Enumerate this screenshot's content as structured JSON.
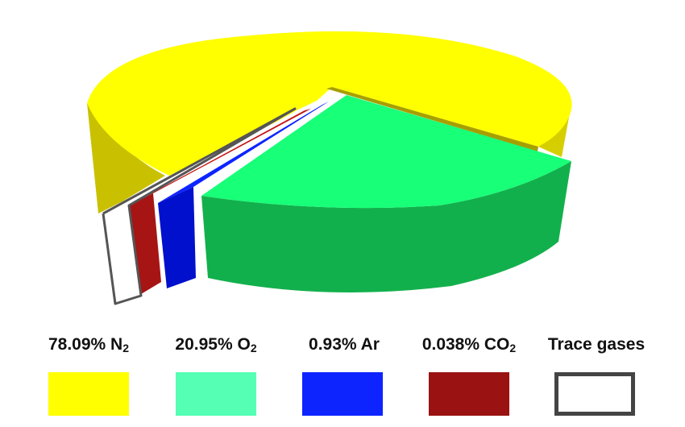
{
  "chart_data": {
    "type": "pie",
    "categories": [
      "N2",
      "O2",
      "Ar",
      "CO2",
      "Trace gases"
    ],
    "values": [
      78.09,
      20.95,
      0.93,
      0.038,
      0.0
    ],
    "legend_labels": [
      {
        "number": "78.09%",
        "formula": "N",
        "sub": "2"
      },
      {
        "number": "20.95%",
        "formula": "O",
        "sub": "2"
      },
      {
        "number": "0.93%",
        "formula": "Ar",
        "sub": ""
      },
      {
        "number": "0.038%",
        "formula": "CO",
        "sub": "2"
      },
      {
        "number": "Trace gases",
        "formula": "",
        "sub": ""
      }
    ],
    "colors": [
      "#ffff00",
      "#55ffb4",
      "#0d24ff",
      "#9a1212",
      "#ffffff"
    ],
    "legend_placement": "bottom",
    "three_d": true
  }
}
